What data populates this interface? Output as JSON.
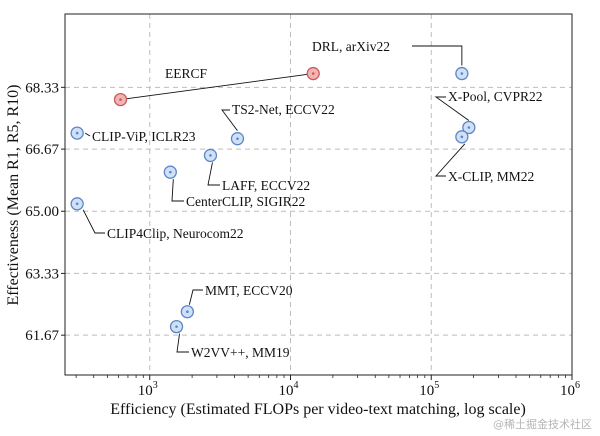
{
  "chart_data": {
    "type": "scatter",
    "title": "",
    "xlabel": "Efficiency (Estimated FLOPs per video-text matching, log scale)",
    "ylabel": "Effectiveness (Mean R1, R5, R10)",
    "x_scale": "log",
    "xlim": [
      250,
      1000000
    ],
    "ylim": [
      60.6,
      70.3
    ],
    "grid": true,
    "x_ticks": [
      {
        "value": 1000,
        "base": "10",
        "exp": "3"
      },
      {
        "value": 10000,
        "base": "10",
        "exp": "4"
      },
      {
        "value": 100000,
        "base": "10",
        "exp": "5"
      },
      {
        "value": 1000000,
        "base": "10",
        "exp": "6"
      }
    ],
    "y_ticks": [
      61.67,
      63.33,
      65.0,
      66.67,
      68.33
    ],
    "y_tick_labels": [
      "61.67",
      "63.33",
      "65.00",
      "66.67",
      "68.33"
    ],
    "colors": {
      "point_fill": "#cfe0f7",
      "point_edge": "#5b86c5",
      "highlight_fill": "#f4b3b3",
      "highlight_edge": "#c85a5a",
      "leader": "#111111"
    },
    "points": [
      {
        "label": "EERCF",
        "x": 620,
        "y": 68.0,
        "highlight": true
      },
      {
        "label": "",
        "x": 14500,
        "y": 68.7,
        "highlight": true
      },
      {
        "label": "DRL, arXiv22",
        "x": 165000,
        "y": 68.7
      },
      {
        "label": "X-Pool, CVPR22",
        "x": 185000,
        "y": 67.25
      },
      {
        "label": "X-CLIP, MM22",
        "x": 165000,
        "y": 67.0
      },
      {
        "label": "TS2-Net, ECCV22",
        "x": 4200,
        "y": 66.95
      },
      {
        "label": "CLIP-ViP, ICLR23",
        "x": 305,
        "y": 67.1
      },
      {
        "label": "LAFF, ECCV22",
        "x": 2700,
        "y": 66.5
      },
      {
        "label": "CenterCLIP, SIGIR22",
        "x": 1400,
        "y": 66.05
      },
      {
        "label": "CLIP4Clip, Neurocom22",
        "x": 305,
        "y": 65.2
      },
      {
        "label": "MMT, ECCV20",
        "x": 1850,
        "y": 62.3
      },
      {
        "label": "W2VV++, MM19",
        "x": 1550,
        "y": 61.9
      }
    ]
  },
  "watermark": "@稀土掘金技术社区"
}
